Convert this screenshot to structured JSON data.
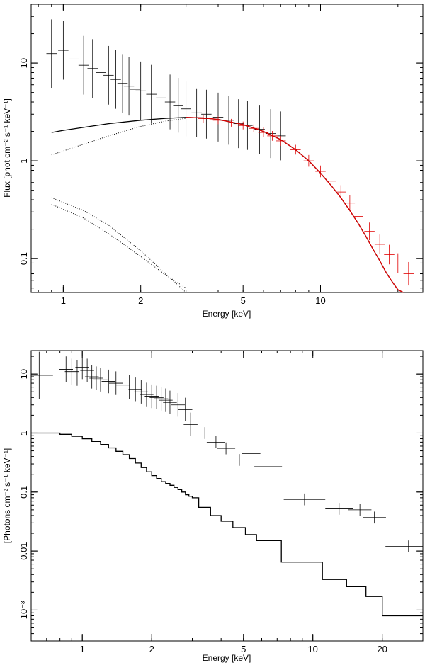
{
  "chart_data": [
    {
      "type": "line",
      "scale": "log-log",
      "xlabel": "Energy [keV]",
      "ylabel": "Flux [phot cm⁻² s⁻¹ keV⁻¹]",
      "xlim": [
        0.75,
        25
      ],
      "ylim": [
        0.045,
        40
      ],
      "x_ticks": [
        1,
        2,
        5,
        10
      ],
      "y_ticks": [
        0.1,
        1,
        10
      ],
      "x_tick_labels": [
        "1",
        "2",
        "5",
        "10"
      ],
      "y_tick_labels": [
        "0.1",
        "1",
        "10"
      ],
      "colors": {
        "black": "#000000",
        "red": "#e00000",
        "model": "#000000"
      },
      "series": [
        {
          "name": "data-low",
          "color": "black",
          "style": "points",
          "x": [
            0.9,
            1.0,
            1.1,
            1.2,
            1.3,
            1.4,
            1.5,
            1.6,
            1.7,
            1.8,
            1.9,
            2.0,
            2.2,
            2.4,
            2.6,
            2.8,
            3.0,
            3.3,
            3.6,
            4.0,
            4.4,
            4.8,
            5.2,
            5.8,
            6.4,
            7.0
          ],
          "y": [
            12.5,
            13.5,
            11.0,
            9.5,
            8.8,
            8.0,
            7.5,
            6.8,
            6.2,
            5.8,
            5.4,
            5.2,
            4.8,
            4.4,
            4.0,
            3.7,
            3.4,
            3.1,
            3.0,
            2.8,
            2.6,
            2.4,
            2.3,
            2.1,
            1.9,
            1.8
          ],
          "yerr": [
            0.35,
            0.3,
            0.3,
            0.3,
            0.3,
            0.3,
            0.3,
            0.3,
            0.3,
            0.3,
            0.3,
            0.3,
            0.3,
            0.3,
            0.28,
            0.28,
            0.28,
            0.25,
            0.25,
            0.25,
            0.25,
            0.25,
            0.25,
            0.25,
            0.25,
            0.25
          ]
        },
        {
          "name": "data-high",
          "color": "red",
          "style": "points",
          "x": [
            3.5,
            4.0,
            4.5,
            5.0,
            5.5,
            6.0,
            6.5,
            7.0,
            8.0,
            9.0,
            10.0,
            11.0,
            12.0,
            13.0,
            14.0,
            15.5,
            17.0,
            18.5,
            20.0,
            22.0
          ],
          "y": [
            2.7,
            2.6,
            2.45,
            2.3,
            2.15,
            1.95,
            1.8,
            1.6,
            1.3,
            1.0,
            0.78,
            0.62,
            0.48,
            0.37,
            0.27,
            0.19,
            0.14,
            0.11,
            0.09,
            0.07
          ],
          "yerr": [
            0.04,
            0.04,
            0.04,
            0.04,
            0.04,
            0.05,
            0.05,
            0.05,
            0.05,
            0.06,
            0.06,
            0.06,
            0.07,
            0.08,
            0.08,
            0.09,
            0.1,
            0.1,
            0.1,
            0.12
          ]
        },
        {
          "name": "total-model",
          "color": "model",
          "style": "solid",
          "x": [
            0.9,
            1.0,
            1.5,
            2.0,
            2.5,
            3.0,
            3.5,
            4.0,
            5.0,
            6.0,
            7.0,
            8.0,
            9.0,
            10.0,
            11.0,
            12.0,
            13.0,
            14.0,
            15.0,
            16.0,
            17.0,
            18.0,
            19.0,
            20.0,
            21.0
          ],
          "y": [
            1.95,
            2.05,
            2.4,
            2.6,
            2.72,
            2.78,
            2.75,
            2.65,
            2.35,
            2.0,
            1.65,
            1.3,
            1.0,
            0.75,
            0.56,
            0.42,
            0.31,
            0.23,
            0.17,
            0.125,
            0.095,
            0.072,
            0.058,
            0.048,
            0.04
          ]
        },
        {
          "name": "red-model",
          "color": "red",
          "style": "solid",
          "x": [
            3.0,
            3.5,
            4.0,
            5.0,
            6.0,
            7.0,
            8.0,
            9.0,
            10.0,
            11.0,
            12.0,
            13.0,
            14.0,
            15.0,
            16.0,
            17.0,
            18.0,
            19.0,
            20.0,
            21.0
          ],
          "y": [
            2.78,
            2.75,
            2.65,
            2.35,
            2.0,
            1.65,
            1.3,
            1.0,
            0.75,
            0.56,
            0.42,
            0.31,
            0.23,
            0.17,
            0.125,
            0.095,
            0.072,
            0.058,
            0.048,
            0.04
          ]
        },
        {
          "name": "component-hot",
          "color": "model",
          "style": "dotted",
          "x": [
            0.9,
            1.5,
            2.0,
            2.5,
            3.0
          ],
          "y": [
            1.15,
            1.8,
            2.25,
            2.55,
            2.72
          ]
        },
        {
          "name": "component-soft-1",
          "color": "model",
          "style": "dotted",
          "x": [
            0.9,
            1.2,
            1.5,
            2.0,
            2.5,
            3.0
          ],
          "y": [
            0.42,
            0.31,
            0.22,
            0.12,
            0.07,
            0.045
          ]
        },
        {
          "name": "component-soft-2",
          "color": "model",
          "style": "dotted",
          "x": [
            0.9,
            1.2,
            1.5,
            2.0,
            2.5,
            3.0
          ],
          "y": [
            0.36,
            0.26,
            0.18,
            0.105,
            0.068,
            0.05
          ]
        }
      ]
    },
    {
      "type": "line",
      "scale": "log-log",
      "xlabel": "Energy [keV]",
      "ylabel": "[Photons cm⁻² s⁻¹ keV⁻¹]",
      "xlim": [
        0.6,
        30
      ],
      "ylim": [
        0.0003,
        25
      ],
      "x_ticks": [
        1,
        2,
        5,
        10,
        20
      ],
      "y_ticks": [
        0.001,
        0.01,
        0.1,
        1,
        10
      ],
      "x_tick_labels": [
        "1",
        "2",
        "5",
        "10",
        "20"
      ],
      "y_tick_labels": [
        "10⁻³",
        "0.01",
        "0.1",
        "1",
        "10"
      ],
      "colors": {
        "data": "#000000",
        "model": "#000000"
      },
      "series": [
        {
          "name": "data",
          "color": "data",
          "style": "points",
          "x": [
            0.65,
            0.85,
            0.9,
            0.95,
            1.0,
            1.05,
            1.1,
            1.15,
            1.2,
            1.3,
            1.4,
            1.5,
            1.6,
            1.7,
            1.8,
            1.9,
            2.0,
            2.1,
            2.2,
            2.3,
            2.4,
            2.6,
            2.8,
            2.95,
            3.4,
            3.8,
            4.2,
            4.8,
            5.4,
            6.4,
            9.2,
            13.0,
            16.0,
            18.5,
            26.0
          ],
          "xerr": [
            0.06,
            0.03,
            0.03,
            0.03,
            0.03,
            0.03,
            0.03,
            0.03,
            0.03,
            0.03,
            0.03,
            0.03,
            0.03,
            0.03,
            0.03,
            0.03,
            0.03,
            0.03,
            0.03,
            0.03,
            0.03,
            0.03,
            0.03,
            0.03,
            0.04,
            0.04,
            0.04,
            0.05,
            0.04,
            0.06,
            0.09,
            0.06,
            0.05,
            0.05,
            0.1
          ],
          "y": [
            9.5,
            12.0,
            11.0,
            10.5,
            13.0,
            11.5,
            9.0,
            8.5,
            8.0,
            7.5,
            7.0,
            6.5,
            6.0,
            5.5,
            5.0,
            4.5,
            4.2,
            4.0,
            3.8,
            3.6,
            3.3,
            3.0,
            2.5,
            1.4,
            1.0,
            0.7,
            0.55,
            0.35,
            0.45,
            0.27,
            0.075,
            0.052,
            0.05,
            0.037,
            0.012
          ],
          "yerr": [
            0.4,
            0.22,
            0.22,
            0.22,
            0.2,
            0.2,
            0.2,
            0.2,
            0.2,
            0.2,
            0.2,
            0.2,
            0.2,
            0.2,
            0.2,
            0.2,
            0.2,
            0.2,
            0.2,
            0.2,
            0.2,
            0.2,
            0.2,
            0.2,
            0.1,
            0.1,
            0.1,
            0.1,
            0.1,
            0.08,
            0.1,
            0.1,
            0.1,
            0.1,
            0.1
          ]
        },
        {
          "name": "model",
          "color": "model",
          "style": "steps",
          "x": [
            0.6,
            0.8,
            0.9,
            1.0,
            1.1,
            1.2,
            1.3,
            1.4,
            1.5,
            1.6,
            1.7,
            1.8,
            1.9,
            2.0,
            2.1,
            2.2,
            2.3,
            2.4,
            2.5,
            2.6,
            2.7,
            2.8,
            2.9,
            3.0,
            3.2,
            3.6,
            4.0,
            4.5,
            5.1,
            5.7,
            7.3,
            11.0,
            14.0,
            17.0,
            20.0,
            30.0
          ],
          "y": [
            1.0,
            0.95,
            0.88,
            0.8,
            0.72,
            0.64,
            0.56,
            0.49,
            0.43,
            0.37,
            0.31,
            0.26,
            0.22,
            0.19,
            0.17,
            0.15,
            0.14,
            0.13,
            0.12,
            0.11,
            0.1,
            0.09,
            0.085,
            0.08,
            0.055,
            0.04,
            0.032,
            0.025,
            0.019,
            0.015,
            0.0065,
            0.0033,
            0.0025,
            0.0017,
            0.0008,
            0.0008
          ]
        }
      ]
    }
  ]
}
